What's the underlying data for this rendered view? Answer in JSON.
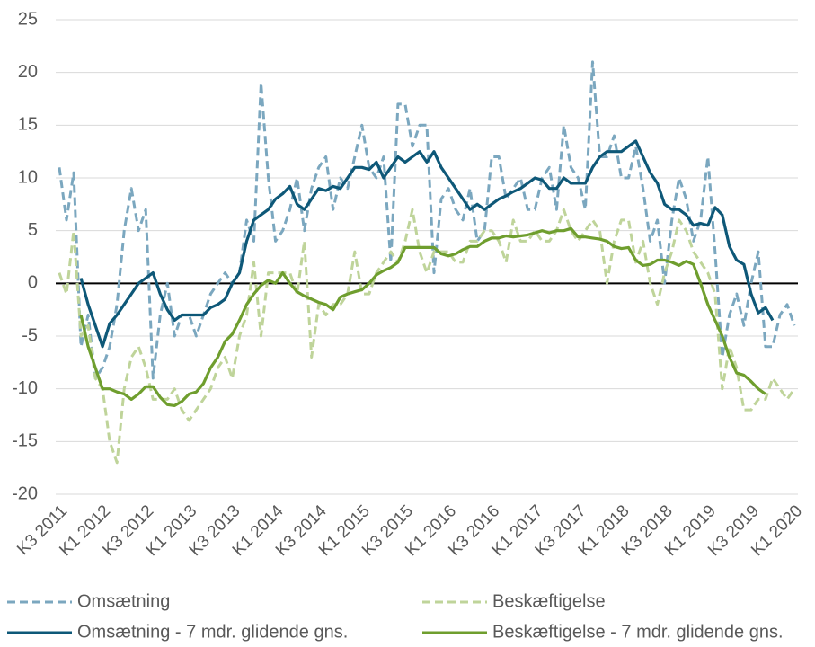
{
  "chart_data": {
    "type": "line",
    "categories": [
      "K3 2011",
      null,
      null,
      null,
      null,
      null,
      "K1 2012",
      null,
      null,
      null,
      null,
      null,
      "K3 2012",
      null,
      null,
      null,
      null,
      null,
      "K1 2013",
      null,
      null,
      null,
      null,
      null,
      "K3 2013",
      null,
      null,
      null,
      null,
      null,
      "K1 2014",
      null,
      null,
      null,
      null,
      null,
      "K3 2014",
      null,
      null,
      null,
      null,
      null,
      "K1 2015",
      null,
      null,
      null,
      null,
      null,
      "K3 2015",
      null,
      null,
      null,
      null,
      null,
      "K1 2016",
      null,
      null,
      null,
      null,
      null,
      "K3 2016",
      null,
      null,
      null,
      null,
      null,
      "K1 2017",
      null,
      null,
      null,
      null,
      null,
      "K3 2017",
      null,
      null,
      null,
      null,
      null,
      "K1 2018",
      null,
      null,
      null,
      null,
      null,
      "K3 2018",
      null,
      null,
      null,
      null,
      null,
      "K1 2019",
      null,
      null,
      null,
      null,
      null,
      "K3 2019",
      null,
      null,
      null,
      null,
      null,
      "K1 2020"
    ],
    "series": [
      {
        "name": "Omsætning",
        "color": "#7ba7bf",
        "dashed": true,
        "values": [
          11,
          6,
          10.5,
          -6,
          -3,
          -9,
          -8,
          -6,
          -2,
          5,
          9,
          5,
          7,
          -9,
          -3,
          0,
          -5,
          -3,
          -3,
          -5,
          -3,
          -1,
          0,
          1,
          0,
          1,
          6,
          4,
          19,
          10,
          4,
          5,
          7,
          10,
          5,
          9,
          11,
          12,
          7,
          10,
          9,
          12,
          15,
          11,
          10,
          12,
          2,
          17,
          17,
          13,
          15,
          15,
          1,
          8,
          9,
          7,
          6,
          9,
          4,
          5,
          12,
          12,
          8,
          9,
          10,
          7,
          7,
          10,
          11,
          7,
          15,
          11,
          10,
          7,
          21,
          12,
          12,
          14,
          10,
          10,
          13,
          9,
          4,
          6,
          0,
          6,
          10,
          8,
          4,
          6,
          12,
          3,
          -7,
          -3,
          -1,
          -4,
          0,
          3,
          -6,
          -6,
          -3,
          -2,
          -4
        ]
      },
      {
        "name": "Beskæftigelse",
        "color": "#bfd49a",
        "dashed": true,
        "values": [
          1,
          -1,
          5,
          -5,
          -4,
          -9,
          -10,
          -15,
          -17,
          -10,
          -7,
          -6,
          -8,
          -11,
          -11,
          -11,
          -10,
          -12,
          -13,
          -12,
          -11,
          -10,
          -8,
          -7,
          -9,
          -5,
          -3,
          2,
          -5,
          1,
          1,
          1,
          1,
          -1,
          4,
          -7,
          -2,
          -3,
          -2,
          -2,
          -1,
          3,
          -1,
          -1,
          1,
          2,
          3,
          2,
          4,
          7,
          3,
          1,
          3,
          3,
          3,
          2,
          2,
          4,
          4,
          5,
          5,
          4,
          2,
          6,
          4,
          4,
          5,
          4,
          4,
          5,
          7,
          5,
          4,
          5,
          6,
          5,
          0,
          4,
          6,
          6,
          2,
          4,
          0,
          -2,
          1,
          3,
          6,
          5,
          3,
          2,
          1,
          -1,
          -10,
          -6,
          -8,
          -12,
          -12,
          -11,
          -11,
          -9,
          -10,
          -11,
          -10
        ]
      },
      {
        "name": "Omsætning - 7 mdr. glidende gns.",
        "color": "#0e5878",
        "dashed": false,
        "values": [
          null,
          null,
          null,
          0.5,
          -2,
          -4,
          -6,
          -3.8,
          -3,
          -2,
          -1,
          0,
          0.5,
          1,
          -1,
          -2.5,
          -3.5,
          -3,
          -3,
          -3,
          -3,
          -2.3,
          -2,
          -1.5,
          0,
          1,
          4,
          6,
          6.5,
          7,
          8,
          8.5,
          9.2,
          7.5,
          7,
          8,
          9,
          8.8,
          9.2,
          9,
          10,
          11,
          11,
          10.8,
          11.5,
          10,
          11,
          12,
          11.5,
          12,
          12.5,
          11.5,
          12.5,
          11,
          10,
          9,
          8,
          7,
          7.5,
          7,
          7.5,
          8,
          8.3,
          8.7,
          9,
          9.5,
          10,
          9.8,
          9,
          9,
          10,
          9.5,
          9.5,
          9.5,
          11,
          12,
          12.5,
          12.5,
          12.5,
          13,
          13.5,
          12,
          10.5,
          9.5,
          7.5,
          7,
          7,
          6.5,
          5.5,
          5.7,
          5.5,
          7.2,
          6.5,
          3.5,
          2.2,
          1.8,
          -1,
          -2.8,
          -2.3,
          -3.5,
          null,
          null,
          null
        ]
      },
      {
        "name": "Beskæftigelse - 7 mdr. glidende gns.",
        "color": "#6f9e2e",
        "dashed": false,
        "values": [
          null,
          null,
          null,
          -3,
          -6,
          -8,
          -10,
          -10,
          -10.3,
          -10.5,
          -11,
          -10.5,
          -9.8,
          -9.8,
          -10.8,
          -11.5,
          -11.6,
          -11.2,
          -10.5,
          -10.3,
          -9.5,
          -8,
          -7,
          -5.5,
          -4.8,
          -3.5,
          -2,
          -1,
          -0.2,
          0.3,
          0,
          1,
          0,
          -0.8,
          -1.2,
          -1.5,
          -1.8,
          -2,
          -2.5,
          -1.3,
          -1,
          -0.8,
          -0.6,
          0,
          0.8,
          1.2,
          1.5,
          2,
          3.4,
          3.4,
          3.4,
          3.4,
          3.4,
          2.8,
          2.6,
          2.8,
          3.2,
          3.5,
          3.5,
          4,
          4.3,
          4.3,
          4.5,
          4.4,
          4.5,
          4.6,
          4.8,
          5,
          4.8,
          5,
          5,
          5.2,
          4.4,
          4.4,
          4.3,
          4.2,
          4,
          3.5,
          3.3,
          3.4,
          2.2,
          1.7,
          1.8,
          2.2,
          2.2,
          2,
          1.7,
          2.1,
          1.8,
          0,
          -2,
          -3.5,
          -5,
          -7,
          -8.5,
          -8.7,
          -9.3,
          -10,
          -10.5,
          null,
          null,
          null,
          null
        ]
      }
    ],
    "ylim": [
      -20,
      25
    ],
    "yticks": [
      -20,
      -15,
      -10,
      -5,
      0,
      5,
      10,
      15,
      20,
      25
    ],
    "grid": true,
    "legend": "bottom"
  }
}
